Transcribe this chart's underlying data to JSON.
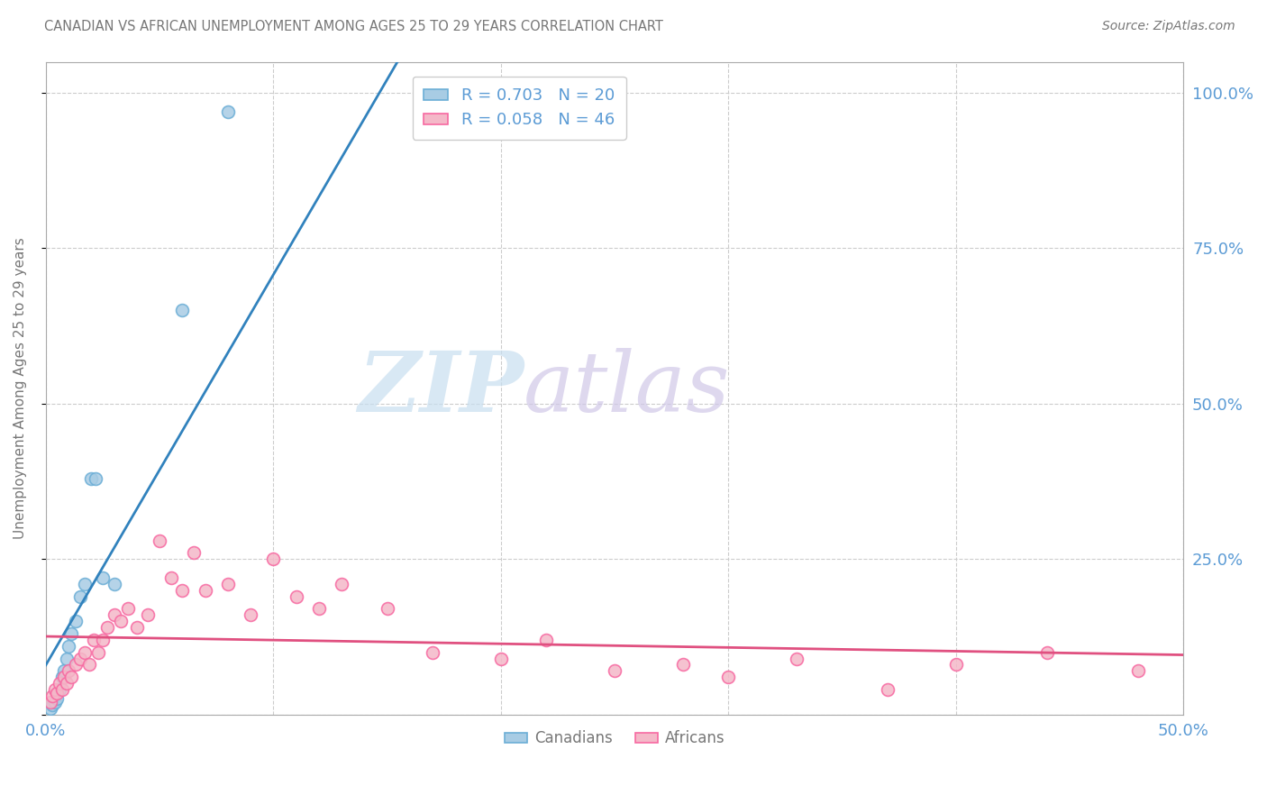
{
  "title": "CANADIAN VS AFRICAN UNEMPLOYMENT AMONG AGES 25 TO 29 YEARS CORRELATION CHART",
  "source": "Source: ZipAtlas.com",
  "ylabel": "Unemployment Among Ages 25 to 29 years",
  "legend_canadian_r": "R = 0.703",
  "legend_canadian_n": "N = 20",
  "legend_african_r": "R = 0.058",
  "legend_african_n": "N = 46",
  "watermark_zip": "ZIP",
  "watermark_atlas": "atlas",
  "canadian_color": "#a8cce4",
  "african_color": "#f4b8c8",
  "canadian_edge_color": "#6baed6",
  "african_edge_color": "#f768a1",
  "canadian_line_color": "#3182bd",
  "african_line_color": "#e05080",
  "title_color": "#777777",
  "axis_label_color": "#5b9bd5",
  "right_axis_color": "#5b9bd5",
  "canadian_x": [
    0.002,
    0.003,
    0.004,
    0.005,
    0.006,
    0.007,
    0.008,
    0.009,
    0.01,
    0.011,
    0.013,
    0.015,
    0.017,
    0.02,
    0.022,
    0.025,
    0.03,
    0.06,
    0.08,
    0.185
  ],
  "canadian_y": [
    0.01,
    0.015,
    0.02,
    0.025,
    0.04,
    0.06,
    0.07,
    0.09,
    0.11,
    0.13,
    0.15,
    0.19,
    0.21,
    0.38,
    0.38,
    0.22,
    0.21,
    0.65,
    0.97,
    1.0
  ],
  "african_x": [
    0.002,
    0.003,
    0.004,
    0.005,
    0.006,
    0.007,
    0.008,
    0.009,
    0.01,
    0.011,
    0.013,
    0.015,
    0.017,
    0.019,
    0.021,
    0.023,
    0.025,
    0.027,
    0.03,
    0.033,
    0.036,
    0.04,
    0.045,
    0.05,
    0.055,
    0.06,
    0.065,
    0.07,
    0.08,
    0.09,
    0.1,
    0.11,
    0.12,
    0.13,
    0.15,
    0.17,
    0.2,
    0.22,
    0.25,
    0.28,
    0.3,
    0.33,
    0.37,
    0.4,
    0.44,
    0.48
  ],
  "african_y": [
    0.02,
    0.03,
    0.04,
    0.035,
    0.05,
    0.04,
    0.06,
    0.05,
    0.07,
    0.06,
    0.08,
    0.09,
    0.1,
    0.08,
    0.12,
    0.1,
    0.12,
    0.14,
    0.16,
    0.15,
    0.17,
    0.14,
    0.16,
    0.28,
    0.22,
    0.2,
    0.26,
    0.2,
    0.21,
    0.16,
    0.25,
    0.19,
    0.17,
    0.21,
    0.17,
    0.1,
    0.09,
    0.12,
    0.07,
    0.08,
    0.06,
    0.09,
    0.04,
    0.08,
    0.1,
    0.07
  ],
  "xlim": [
    0.0,
    0.5
  ],
  "ylim": [
    0.0,
    1.05
  ],
  "xticks": [
    0.0,
    0.1,
    0.2,
    0.3,
    0.4,
    0.5
  ],
  "xtick_labels": [
    "0.0%",
    "",
    "",
    "",
    "",
    "50.0%"
  ],
  "yticks_right": [
    0.0,
    0.25,
    0.5,
    0.75,
    1.0
  ],
  "ytick_labels_right": [
    "",
    "25.0%",
    "50.0%",
    "75.0%",
    "100.0%"
  ],
  "grid_color": "#cccccc",
  "bg_color": "#ffffff",
  "marker_size": 100,
  "marker_linewidth": 1.2
}
